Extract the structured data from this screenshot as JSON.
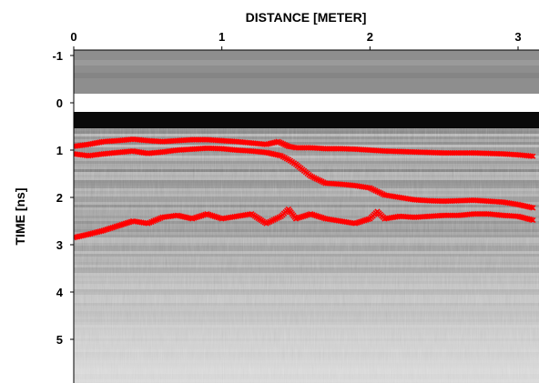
{
  "chart_data": {
    "type": "scatter",
    "xlabel": "DISTANCE [METER]",
    "ylabel": "TIME [ns]",
    "xlim": [
      0,
      3.1
    ],
    "ylim": [
      -1.2,
      5.8
    ],
    "y_inverted": true,
    "x_axis_position": "top",
    "grid": false,
    "legend": "none",
    "x_ticks": [
      {
        "value": 0,
        "label": "0"
      },
      {
        "value": 1,
        "label": "1"
      },
      {
        "value": 2,
        "label": "2"
      },
      {
        "value": 3,
        "label": "3"
      }
    ],
    "y_ticks": [
      {
        "value": -1,
        "label": "-1"
      },
      {
        "value": 0,
        "label": "0"
      },
      {
        "value": 1,
        "label": "1"
      },
      {
        "value": 2,
        "label": "2"
      },
      {
        "value": 3,
        "label": "3"
      },
      {
        "value": 4,
        "label": "4"
      },
      {
        "value": 5,
        "label": "5"
      }
    ],
    "background": {
      "kind": "radargram",
      "colormap": "grayscale"
    },
    "series": [
      {
        "color": "#ff0000",
        "marker": "x",
        "x": [
          0.0,
          0.1,
          0.2,
          0.3,
          0.4,
          0.5,
          0.6,
          0.7,
          0.8,
          0.9,
          1.0,
          1.1,
          1.2,
          1.3,
          1.38,
          1.45,
          1.5,
          1.6,
          1.7,
          1.8,
          1.9,
          2.0,
          2.1,
          2.2,
          2.3,
          2.4,
          2.5,
          2.6,
          2.7,
          2.8,
          2.9,
          3.0,
          3.1
        ],
        "y": [
          0.92,
          0.88,
          0.82,
          0.8,
          0.77,
          0.8,
          0.82,
          0.8,
          0.78,
          0.78,
          0.8,
          0.82,
          0.85,
          0.88,
          0.82,
          0.92,
          0.95,
          0.95,
          0.97,
          0.97,
          0.98,
          1.0,
          1.02,
          1.03,
          1.04,
          1.05,
          1.06,
          1.06,
          1.06,
          1.07,
          1.08,
          1.1,
          1.13
        ]
      },
      {
        "color": "#ff0000",
        "marker": "x",
        "x": [
          0.0,
          0.1,
          0.2,
          0.3,
          0.4,
          0.5,
          0.6,
          0.7,
          0.8,
          0.9,
          1.0,
          1.1,
          1.2,
          1.3,
          1.4,
          1.45,
          1.5,
          1.6,
          1.7,
          1.8,
          1.9,
          2.0,
          2.1,
          2.2,
          2.3,
          2.4,
          2.5,
          2.6,
          2.7,
          2.8,
          2.9,
          3.0,
          3.1
        ],
        "y": [
          1.08,
          1.12,
          1.08,
          1.05,
          1.02,
          1.07,
          1.04,
          1.0,
          0.98,
          0.96,
          0.97,
          1.0,
          1.02,
          1.05,
          1.12,
          1.2,
          1.3,
          1.55,
          1.7,
          1.72,
          1.75,
          1.8,
          1.95,
          2.0,
          2.05,
          2.07,
          2.08,
          2.07,
          2.06,
          2.08,
          2.1,
          2.15,
          2.22
        ]
      },
      {
        "color": "#ff0000",
        "marker": "x",
        "x": [
          0.0,
          0.1,
          0.2,
          0.3,
          0.4,
          0.5,
          0.6,
          0.7,
          0.8,
          0.9,
          1.0,
          1.1,
          1.2,
          1.3,
          1.4,
          1.45,
          1.5,
          1.6,
          1.7,
          1.8,
          1.9,
          2.0,
          2.05,
          2.1,
          2.2,
          2.3,
          2.4,
          2.5,
          2.6,
          2.7,
          2.8,
          2.9,
          3.0,
          3.1
        ],
        "y": [
          2.85,
          2.78,
          2.7,
          2.6,
          2.5,
          2.55,
          2.42,
          2.38,
          2.45,
          2.35,
          2.45,
          2.4,
          2.35,
          2.55,
          2.4,
          2.25,
          2.45,
          2.35,
          2.45,
          2.5,
          2.55,
          2.45,
          2.3,
          2.45,
          2.4,
          2.42,
          2.4,
          2.38,
          2.38,
          2.35,
          2.35,
          2.38,
          2.4,
          2.48
        ]
      }
    ]
  }
}
